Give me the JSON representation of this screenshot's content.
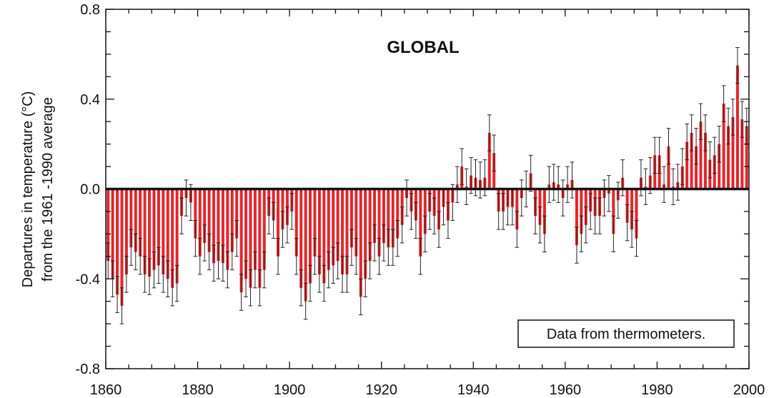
{
  "chart_data": {
    "type": "bar",
    "title": "GLOBAL",
    "ylabel_line1": "Departures in temperature (°C)",
    "ylabel_line2": "from the 1961 -1990 average",
    "xlabel": "",
    "annotation": "Data from thermometers.",
    "xlim": [
      1860,
      2000
    ],
    "ylim": [
      -0.8,
      0.8
    ],
    "x_ticks": [
      1860,
      1880,
      1900,
      1920,
      1940,
      1960,
      1980,
      2000
    ],
    "y_ticks": [
      "0.8",
      "0.4",
      "0.0",
      "-0.4",
      "-0.8"
    ],
    "y_tick_values": [
      0.8,
      0.4,
      0.0,
      -0.4,
      -0.8
    ],
    "grid": false,
    "bar_color": "#e2262b",
    "errorbar_color": "#222222",
    "zero_line_color": "#111111",
    "years": [
      1861,
      1862,
      1863,
      1864,
      1865,
      1866,
      1867,
      1868,
      1869,
      1870,
      1871,
      1872,
      1873,
      1874,
      1875,
      1876,
      1877,
      1878,
      1879,
      1880,
      1881,
      1882,
      1883,
      1884,
      1885,
      1886,
      1887,
      1888,
      1889,
      1890,
      1891,
      1892,
      1893,
      1894,
      1895,
      1896,
      1897,
      1898,
      1899,
      1900,
      1901,
      1902,
      1903,
      1904,
      1905,
      1906,
      1907,
      1908,
      1909,
      1910,
      1911,
      1912,
      1913,
      1914,
      1915,
      1916,
      1917,
      1918,
      1919,
      1920,
      1921,
      1922,
      1923,
      1924,
      1925,
      1926,
      1927,
      1928,
      1929,
      1930,
      1931,
      1932,
      1933,
      1934,
      1935,
      1936,
      1937,
      1938,
      1939,
      1940,
      1941,
      1942,
      1943,
      1944,
      1945,
      1946,
      1947,
      1948,
      1949,
      1950,
      1951,
      1952,
      1953,
      1954,
      1955,
      1956,
      1957,
      1958,
      1959,
      1960,
      1961,
      1962,
      1963,
      1964,
      1965,
      1966,
      1967,
      1968,
      1969,
      1970,
      1971,
      1972,
      1973,
      1974,
      1975,
      1976,
      1977,
      1978,
      1979,
      1980,
      1981,
      1982,
      1983,
      1984,
      1985,
      1986,
      1987,
      1988,
      1989,
      1990,
      1991,
      1992,
      1993,
      1994,
      1995,
      1996,
      1997,
      1998,
      1999,
      2000
    ],
    "values": [
      -0.32,
      -0.4,
      -0.47,
      -0.52,
      -0.38,
      -0.26,
      -0.28,
      -0.3,
      -0.38,
      -0.39,
      -0.36,
      -0.34,
      -0.38,
      -0.4,
      -0.44,
      -0.42,
      -0.12,
      -0.04,
      -0.06,
      -0.22,
      -0.3,
      -0.24,
      -0.28,
      -0.33,
      -0.32,
      -0.33,
      -0.36,
      -0.28,
      -0.22,
      -0.46,
      -0.4,
      -0.44,
      -0.36,
      -0.44,
      -0.36,
      -0.12,
      -0.14,
      -0.3,
      -0.18,
      -0.16,
      -0.1,
      -0.3,
      -0.44,
      -0.5,
      -0.42,
      -0.3,
      -0.38,
      -0.42,
      -0.36,
      -0.34,
      -0.32,
      -0.38,
      -0.38,
      -0.26,
      -0.3,
      -0.48,
      -0.4,
      -0.32,
      -0.24,
      -0.3,
      -0.24,
      -0.26,
      -0.26,
      -0.22,
      -0.16,
      -0.04,
      -0.1,
      -0.14,
      -0.3,
      -0.2,
      -0.1,
      -0.12,
      -0.18,
      -0.08,
      -0.14,
      -0.06,
      0.02,
      0.1,
      0.01,
      0.06,
      0.05,
      0.04,
      0.05,
      0.25,
      0.16,
      -0.1,
      -0.1,
      -0.08,
      -0.08,
      -0.18,
      -0.04,
      0.0,
      0.07,
      -0.12,
      -0.16,
      -0.2,
      0.02,
      0.03,
      0.02,
      -0.04,
      0.02,
      0.04,
      -0.25,
      -0.2,
      -0.16,
      -0.1,
      -0.12,
      -0.12,
      -0.04,
      -0.02,
      -0.2,
      -0.05,
      0.05,
      -0.15,
      -0.18,
      -0.22,
      0.05,
      0.01,
      0.06,
      0.15,
      0.15,
      0.02,
      0.19,
      0.01,
      0.03,
      0.1,
      0.21,
      0.25,
      0.19,
      0.3,
      0.25,
      0.13,
      0.15,
      0.2,
      0.38,
      0.28,
      0.32,
      0.55,
      0.31,
      0.28
    ],
    "error_halfwidth": 0.08
  }
}
